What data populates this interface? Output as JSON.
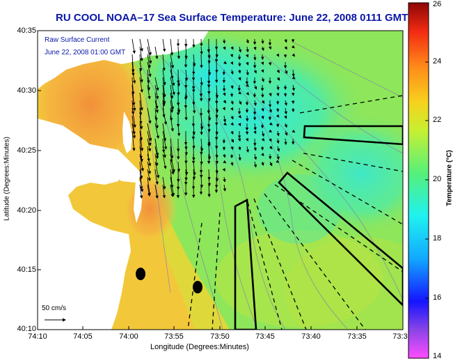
{
  "title": "RU COOL   NOAA–17  Sea Surface Temperature:  June 22, 2008 0111 GMT",
  "legend": {
    "line1": "Raw Surface Current",
    "line2": "June 22, 2008 01:00 GMT"
  },
  "scale_label": "50 cm/s",
  "axes": {
    "xlabel": "Longitude (Degrees:Minutes)",
    "ylabel": "Latitude (Degrees:Minutes)",
    "yticks": [
      "40:35",
      "40:30",
      "40:25",
      "40:20",
      "40:15",
      "40:10"
    ],
    "xticks": [
      "74:10",
      "74:05",
      "74:00",
      "73:55",
      "73:50",
      "73:45",
      "73:40",
      "73:35",
      "73:3"
    ]
  },
  "colorbar": {
    "label": "Temperature (°C)",
    "ticks": [
      "26",
      "24",
      "22",
      "20",
      "18",
      "16",
      "14"
    ],
    "range": [
      14,
      26
    ]
  },
  "colors": {
    "title_blue": "#0a16a8",
    "land": "#ffffff",
    "sea_green": "#86e65a",
    "warm_orange": "#f59a35",
    "cool_cyan": "#2fe7cf"
  }
}
